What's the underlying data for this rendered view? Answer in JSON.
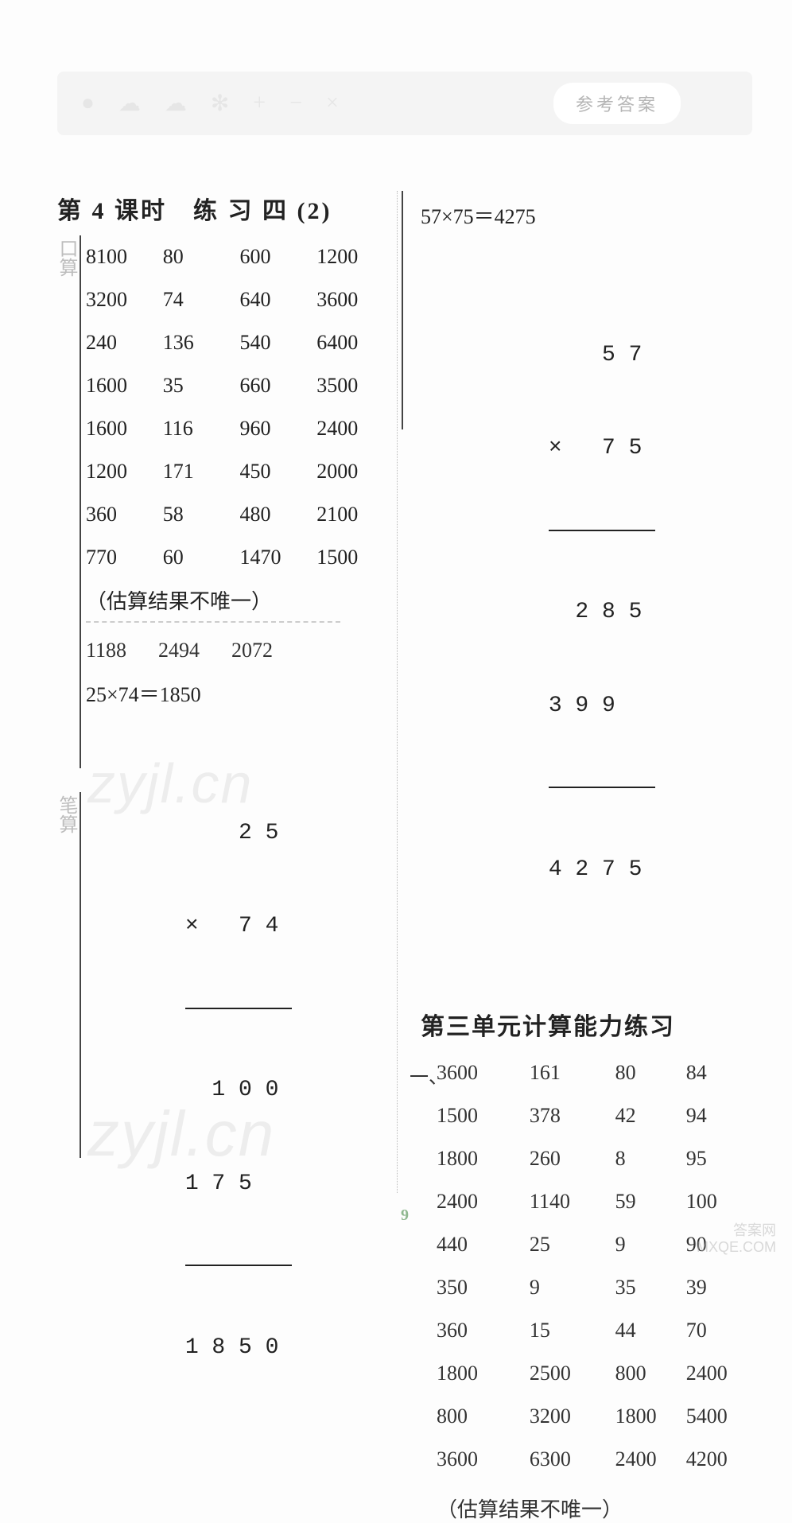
{
  "header": {
    "pill_label": "参考答案",
    "icons": [
      "●",
      "☁",
      "☁",
      "✻",
      "+",
      "−",
      "×",
      "÷"
    ]
  },
  "left": {
    "title": "第 4 课时　练 习 四 (2)",
    "kousuan_label": "口算",
    "bisuan_label": "笔算",
    "grid": [
      [
        "8100",
        "80",
        "600",
        "1200"
      ],
      [
        "3200",
        "74",
        "640",
        "3600"
      ],
      [
        "240",
        "136",
        "540",
        "6400"
      ],
      [
        "1600",
        "35",
        "660",
        "3500"
      ],
      [
        "1600",
        "116",
        "960",
        "2400"
      ],
      [
        "1200",
        "171",
        "450",
        "2000"
      ],
      [
        "360",
        "58",
        "480",
        "2100"
      ],
      [
        "770",
        "60",
        "1470",
        "1500"
      ]
    ],
    "note": "（估算结果不唯一）",
    "row3": [
      "1188",
      "2494",
      "2072"
    ],
    "eq1": "25×74＝1850",
    "mult1": {
      "top": "    2 5",
      "times": "×   7 4",
      "p1": "  1 0 0",
      "p2": "1 7 5  ",
      "result": "1 8 5 0"
    }
  },
  "right": {
    "eq2": "57×75＝4275",
    "mult2": {
      "top": "    5 7",
      "times": "×   7 5",
      "p1": "  2 8 5",
      "p2": "3 9 9  ",
      "result": "4 2 7 5"
    },
    "sec2_title": "第三单元计算能力练习",
    "one_label": "一、",
    "grid2": [
      [
        "3600",
        "161",
        "80",
        "84"
      ],
      [
        "1500",
        "378",
        "42",
        "94"
      ],
      [
        "1800",
        "260",
        "8",
        "95"
      ],
      [
        "2400",
        "1140",
        "59",
        "100"
      ],
      [
        "440",
        "25",
        "9",
        "90"
      ],
      [
        "350",
        "9",
        "35",
        "39"
      ],
      [
        "360",
        "15",
        "44",
        "70"
      ],
      [
        "1800",
        "2500",
        "800",
        "2400"
      ],
      [
        "800",
        "3200",
        "1800",
        "5400"
      ],
      [
        "3600",
        "6300",
        "2400",
        "4200"
      ]
    ],
    "note2": "（估算结果不唯一）"
  },
  "page_number": "9",
  "watermarks": {
    "wm1": "zyjl.cn",
    "wm2": "zyjl.cn",
    "corner1": "答案网",
    "corner2": "MXQE.COM"
  }
}
